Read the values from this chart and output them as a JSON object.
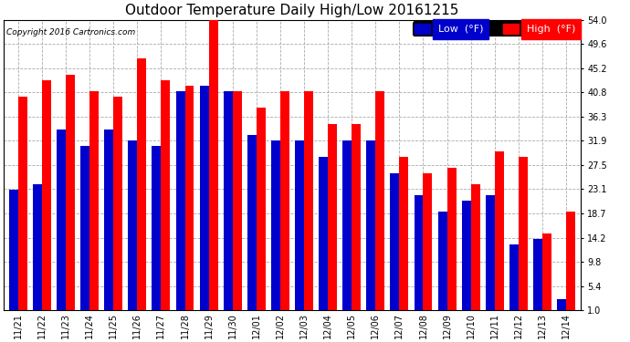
{
  "title": "Outdoor Temperature Daily High/Low 20161215",
  "copyright": "Copyright 2016 Cartronics.com",
  "legend_low": "Low  (°F)",
  "legend_high": "High  (°F)",
  "dates": [
    "11/21",
    "11/22",
    "11/23",
    "11/24",
    "11/25",
    "11/26",
    "11/27",
    "11/28",
    "11/29",
    "11/30",
    "12/01",
    "12/02",
    "12/03",
    "12/04",
    "12/05",
    "12/06",
    "12/07",
    "12/08",
    "12/09",
    "12/10",
    "12/11",
    "12/12",
    "12/13",
    "12/14"
  ],
  "high": [
    40,
    43,
    44,
    41,
    40,
    47,
    43,
    42,
    54,
    41,
    38,
    41,
    41,
    35,
    35,
    41,
    29,
    26,
    27,
    24,
    30,
    29,
    15,
    19
  ],
  "low": [
    23,
    24,
    34,
    31,
    34,
    32,
    31,
    41,
    42,
    41,
    33,
    32,
    32,
    29,
    32,
    32,
    26,
    22,
    19,
    21,
    22,
    13,
    14,
    3
  ],
  "ylim_min": 1.0,
  "ylim_max": 54.0,
  "yticks": [
    1.0,
    5.4,
    9.8,
    14.2,
    18.7,
    23.1,
    27.5,
    31.9,
    36.3,
    40.8,
    45.2,
    49.6,
    54.0
  ],
  "bar_width": 0.38,
  "high_color": "#ff0000",
  "low_color": "#0000cc",
  "bg_color": "#ffffff",
  "grid_color": "#aaaaaa",
  "title_fontsize": 11,
  "tick_fontsize": 7,
  "legend_fontsize": 8,
  "figwidth": 6.9,
  "figheight": 3.75,
  "dpi": 100
}
